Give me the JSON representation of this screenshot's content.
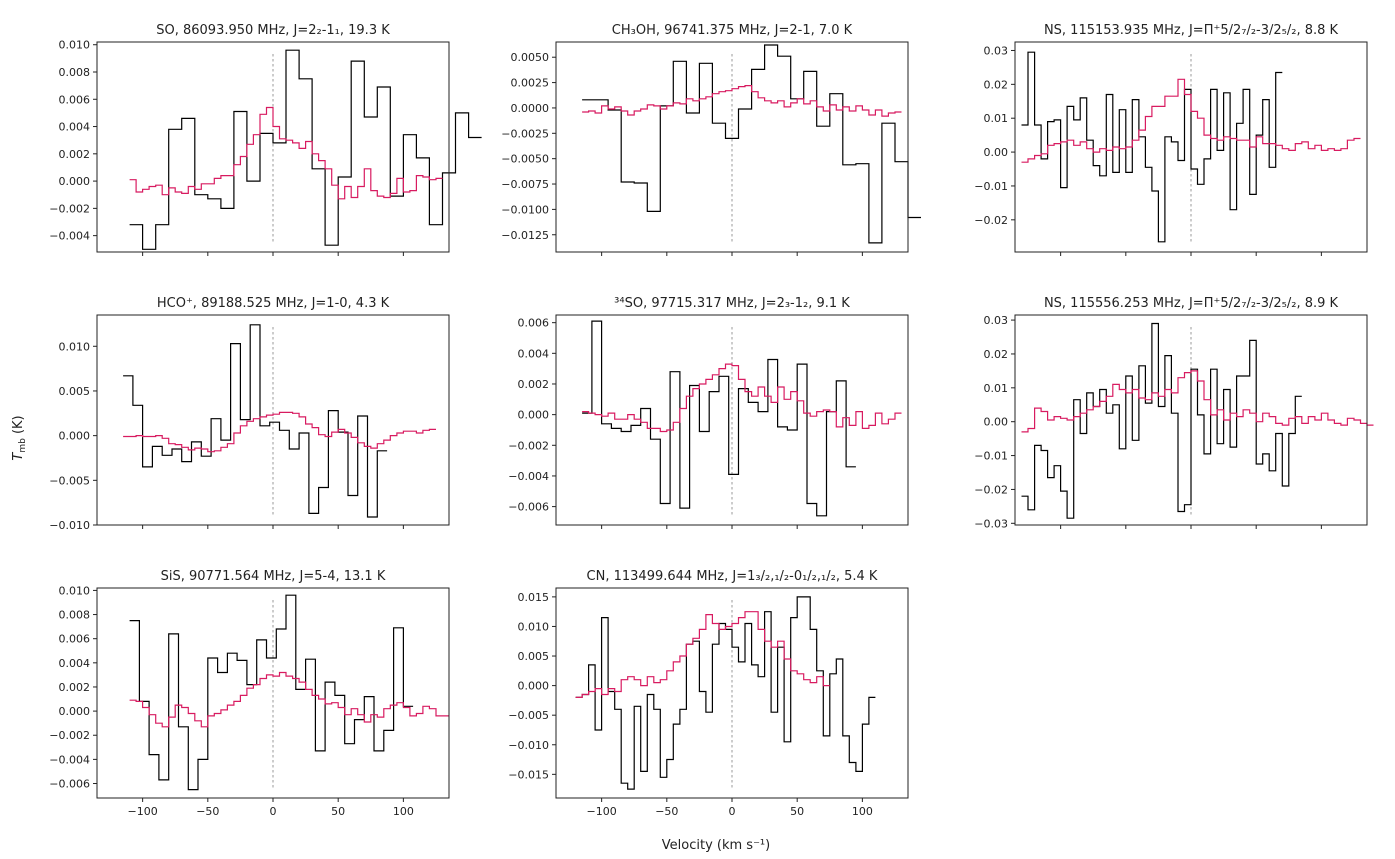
{
  "figure": {
    "xlabel": "Velocity (km s⁻¹)",
    "ylabel": "T_mb (K)",
    "colors": {
      "observed": "#000000",
      "model": "#d81b60",
      "zero_line": "#999999"
    }
  },
  "chart_data": [
    {
      "type": "line",
      "title": "SO, 86093.950 MHz, J=2₂-1₁, 19.3 K",
      "xlim": [
        -135,
        135
      ],
      "ylim": [
        -0.0052,
        0.0102
      ],
      "xticks": [
        -100,
        -50,
        0,
        50,
        100
      ],
      "xticklabels_visible": false,
      "yticks": [
        -0.004,
        -0.002,
        0.0,
        0.002,
        0.004,
        0.006,
        0.008,
        0.01
      ],
      "yticklabels": [
        "−0.004",
        "−0.002",
        "0.000",
        "0.002",
        "0.004",
        "0.006",
        "0.008",
        "0.010"
      ],
      "observed": {
        "x0": -110,
        "dx": 10,
        "values": [
          -0.0032,
          -0.005,
          -0.0032,
          0.0038,
          0.0046,
          -0.001,
          -0.0013,
          -0.002,
          0.0051,
          0.0,
          0.0035,
          0.0028,
          0.0096,
          0.0075,
          0.0009,
          -0.0047,
          0.0003,
          0.0088,
          0.0047,
          0.0069,
          -0.0011,
          0.0034,
          0.0017,
          -0.0032,
          0.0006,
          0.005,
          0.0032
        ]
      },
      "model": {
        "x0": -110,
        "dx": 5,
        "values": [
          0.0001,
          -0.0008,
          -0.0006,
          -0.0004,
          -0.0003,
          -0.001,
          -0.0005,
          -0.0008,
          -0.0009,
          -0.0004,
          -0.0006,
          -0.0002,
          -0.0002,
          0.0002,
          0.0004,
          0.0004,
          0.0012,
          0.0018,
          0.0027,
          0.0034,
          0.0049,
          0.0054,
          0.004,
          0.0031,
          0.003,
          0.0028,
          0.0024,
          0.0029,
          0.002,
          0.0015,
          0.0009,
          -0.0003,
          -0.0013,
          -0.0004,
          -0.0012,
          -0.0004,
          0.0009,
          -0.0007,
          -0.0011,
          -0.0012,
          -0.0009,
          0.0002,
          -0.0008,
          -0.0007,
          0.0004,
          0.0003,
          0.0001,
          0.0002
        ]
      }
    },
    {
      "type": "line",
      "title": "CH₃OH, 96741.375 MHz, J=2-1, 7.0 K",
      "xlim": [
        -135,
        135
      ],
      "ylim": [
        -0.0142,
        0.0065
      ],
      "xticks": [
        -100,
        -50,
        0,
        50,
        100
      ],
      "xticklabels_visible": false,
      "yticks": [
        -0.0125,
        -0.01,
        -0.0075,
        -0.005,
        -0.0025,
        0.0,
        0.0025,
        0.005
      ],
      "yticklabels": [
        "−0.0125",
        "−0.0100",
        "−0.0075",
        "−0.0050",
        "−0.0025",
        "0.0000",
        "0.0025",
        "0.0050"
      ],
      "observed": {
        "x0": -115,
        "dx": 10,
        "values": [
          0.0008,
          0.0008,
          -0.0002,
          -0.0073,
          -0.0074,
          -0.0102,
          0.0002,
          0.0046,
          -0.0005,
          0.0044,
          -0.0015,
          -0.003,
          -0.0001,
          0.0038,
          0.0062,
          0.0051,
          0.0009,
          0.0036,
          -0.0018,
          0.0014,
          -0.0056,
          -0.0055,
          -0.0133,
          -0.0015,
          -0.0053,
          -0.0108
        ]
      },
      "model": {
        "x0": -115,
        "dx": 5,
        "values": [
          -0.0004,
          -0.0003,
          -0.0005,
          0.0002,
          -0.0001,
          0.0001,
          -0.0003,
          -0.0007,
          -0.0003,
          -0.0001,
          0.0003,
          0.0002,
          -0.0001,
          0.0002,
          0.0005,
          0.0004,
          0.0009,
          0.0007,
          0.0009,
          0.0011,
          0.0014,
          0.0016,
          0.0017,
          0.0019,
          0.0021,
          0.0022,
          0.0016,
          0.001,
          0.0007,
          0.0005,
          0.0007,
          0.0001,
          0.0005,
          0.0009,
          0.0004,
          0.0007,
          0.0001,
          -0.0003,
          0.0003,
          -0.0002,
          0.0001,
          -0.0003,
          0.0002,
          -0.0002,
          -0.0007,
          -0.0002,
          -0.0008,
          -0.0005,
          -0.0004
        ]
      }
    },
    {
      "type": "line",
      "title": "NS, 115153.935 MHz, J=Π⁺5/2₇/₂-3/2₅/₂, 8.8 K",
      "xlim": [
        -135,
        135
      ],
      "ylim": [
        -0.0295,
        0.0325
      ],
      "xticks": [
        -100,
        -50,
        0,
        50,
        100
      ],
      "xticklabels_visible": false,
      "yticks": [
        -0.02,
        -0.01,
        0.0,
        0.01,
        0.02,
        0.03
      ],
      "yticklabels": [
        "−0.02",
        "−0.01",
        "0.00",
        "0.01",
        "0.02",
        "0.03"
      ],
      "observed": {
        "x0": -130,
        "dx": 5,
        "values": [
          0.008,
          0.0295,
          0.008,
          -0.002,
          0.009,
          0.0095,
          -0.0105,
          0.0135,
          0.0095,
          0.016,
          0.0035,
          -0.004,
          -0.007,
          0.017,
          -0.006,
          0.0125,
          -0.006,
          0.0155,
          0.0045,
          -0.0045,
          -0.0115,
          -0.0265,
          0.0045,
          0.003,
          -0.0025,
          0.0185,
          -0.005,
          -0.0095,
          -0.002,
          0.0185,
          0.0005,
          0.0175,
          -0.017,
          0.0085,
          0.0185,
          -0.0125,
          0.005,
          0.0155,
          -0.0045,
          0.0235
        ]
      },
      "model": {
        "x0": -130,
        "dx": 5,
        "values": [
          -0.003,
          -0.002,
          -0.001,
          -0.0005,
          0.002,
          0.0025,
          0.003,
          0.0035,
          0.002,
          0.003,
          0.001,
          0.0,
          0.001,
          0.0005,
          0.0015,
          0.001,
          0.0015,
          0.0035,
          0.0065,
          0.0105,
          0.0135,
          0.0135,
          0.0165,
          0.0165,
          0.0215,
          0.017,
          0.012,
          0.01,
          0.005,
          0.004,
          0.0035,
          0.0045,
          0.004,
          0.0035,
          0.0035,
          0.0015,
          0.0045,
          0.0025,
          0.0025,
          0.002,
          0.001,
          0.0005,
          0.0025,
          0.003,
          0.001,
          0.002,
          0.0005,
          0.001,
          0.0005,
          0.001,
          0.0035,
          0.004
        ]
      }
    },
    {
      "type": "line",
      "title": "HCO⁺, 89188.525 MHz, J=1-0, 4.3 K",
      "xlim": [
        -135,
        135
      ],
      "ylim": [
        -0.01,
        0.0135
      ],
      "xticks": [
        -100,
        -50,
        0,
        50,
        100
      ],
      "xticklabels_visible": false,
      "yticks": [
        -0.01,
        -0.005,
        0.0,
        0.005,
        0.01
      ],
      "yticklabels": [
        "−0.010",
        "−0.005",
        "0.000",
        "0.005",
        "0.010"
      ],
      "observed": {
        "x0": -115,
        "dx": 7.5,
        "values": [
          0.0067,
          0.0034,
          -0.0035,
          -0.0012,
          -0.0022,
          -0.0015,
          -0.0029,
          -0.0007,
          -0.0023,
          0.0019,
          -0.0005,
          0.0103,
          0.0018,
          0.0124,
          0.0011,
          0.0015,
          0.0006,
          -0.0015,
          0.0003,
          -0.0087,
          -0.0058,
          0.0028,
          0.0004,
          -0.0067,
          0.0022,
          -0.0091,
          -0.0017
        ]
      },
      "model": {
        "x0": -115,
        "dx": 5,
        "values": [
          -0.0001,
          -0.0001,
          0.0,
          -0.0001,
          -0.0001,
          0.0,
          -0.0003,
          -0.0009,
          -0.001,
          -0.0013,
          -0.0016,
          -0.0014,
          -0.0015,
          -0.0018,
          -0.0017,
          -0.0013,
          -0.0009,
          0.0003,
          0.0011,
          0.0016,
          0.0019,
          0.0021,
          0.0023,
          0.0024,
          0.0026,
          0.0026,
          0.0025,
          0.0021,
          0.0013,
          0.0009,
          0.0001,
          -0.0001,
          0.0004,
          0.0007,
          0.0003,
          -0.0002,
          -0.0008,
          -0.0012,
          -0.0014,
          -0.0009,
          -0.0005,
          0.0,
          0.0003,
          0.0005,
          0.0005,
          0.0003,
          0.0006,
          0.0007
        ]
      }
    },
    {
      "type": "line",
      "title": "³⁴SO, 97715.317 MHz, J=2₃-1₂, 9.1 K",
      "xlim": [
        -135,
        135
      ],
      "ylim": [
        -0.0072,
        0.0065
      ],
      "xticks": [
        -100,
        -50,
        0,
        50,
        100
      ],
      "xticklabels_visible": false,
      "yticks": [
        -0.006,
        -0.004,
        -0.002,
        0.0,
        0.002,
        0.004,
        0.006
      ],
      "yticklabels": [
        "−0.006",
        "−0.004",
        "−0.002",
        "0.000",
        "0.002",
        "0.004",
        "0.006"
      ],
      "observed": {
        "x0": -115,
        "dx": 7.5,
        "values": [
          0.0001,
          0.0061,
          -0.0006,
          -0.0009,
          -0.0011,
          -0.0007,
          0.0004,
          -0.0016,
          -0.0058,
          0.0028,
          -0.0061,
          0.0019,
          -0.0011,
          0.0015,
          0.0025,
          -0.0039,
          0.0017,
          0.0008,
          0.0002,
          0.0036,
          -0.0008,
          -0.001,
          0.0033,
          -0.0058,
          -0.0066,
          0.0002,
          0.0022,
          -0.0034
        ]
      },
      "model": {
        "x0": -115,
        "dx": 5,
        "values": [
          0.0002,
          0.0001,
          0.0,
          -0.0001,
          0.0001,
          -0.0003,
          -0.0003,
          0.0,
          -0.0003,
          -0.0005,
          -0.0009,
          -0.0009,
          -0.0011,
          -0.001,
          -0.0005,
          0.0004,
          0.0012,
          0.0017,
          0.002,
          0.0023,
          0.0026,
          0.003,
          0.0033,
          0.0032,
          0.0023,
          0.0015,
          0.0012,
          0.0018,
          0.0012,
          0.0008,
          0.0018,
          0.001,
          0.0015,
          0.0009,
          0.0001,
          -0.0001,
          0.0002,
          0.0003,
          0.0002,
          -0.0008,
          -0.0002,
          -0.0007,
          0.0002,
          -0.0009,
          -0.0007,
          0.0001,
          -0.0006,
          -0.0003,
          0.0001
        ]
      }
    },
    {
      "type": "line",
      "title": "NS, 115556.253 MHz, J=Π⁺5/2₇/₂-3/2₅/₂, 8.9 K",
      "xlim": [
        -135,
        135
      ],
      "ylim": [
        -0.0305,
        0.0315
      ],
      "xticks": [
        -100,
        -50,
        0,
        50,
        100
      ],
      "xticklabels_visible": false,
      "yticks": [
        -0.03,
        -0.02,
        -0.01,
        0.0,
        0.01,
        0.02,
        0.03
      ],
      "yticklabels": [
        "−0.03",
        "−0.02",
        "−0.01",
        "0.00",
        "0.01",
        "0.02",
        "0.03"
      ],
      "observed": {
        "x0": -130,
        "dx": 5,
        "values": [
          -0.022,
          -0.026,
          -0.007,
          -0.0085,
          -0.0165,
          -0.013,
          -0.0205,
          -0.0285,
          0.0065,
          -0.0035,
          0.0085,
          0.0045,
          0.0095,
          0.0025,
          0.005,
          -0.008,
          0.0135,
          -0.0055,
          0.0165,
          0.0055,
          0.029,
          0.0045,
          0.0195,
          0.0025,
          -0.0265,
          -0.0245,
          0.0155,
          0.002,
          -0.0095,
          0.0155,
          -0.0065,
          0.0095,
          -0.0075,
          0.0135,
          0.0135,
          0.024,
          -0.0125,
          -0.0095,
          -0.0145,
          -0.0035,
          -0.019,
          -0.0035,
          0.0075
        ]
      },
      "model": {
        "x0": -130,
        "dx": 5,
        "values": [
          -0.003,
          -0.002,
          0.004,
          0.003,
          0.0005,
          0.0015,
          0.001,
          0.0005,
          0.0015,
          0.0025,
          0.0035,
          0.0045,
          0.006,
          0.0075,
          0.011,
          0.0095,
          0.0085,
          0.0095,
          0.007,
          0.0065,
          0.0085,
          0.0075,
          0.0095,
          0.0085,
          0.013,
          0.0145,
          0.015,
          0.012,
          0.0065,
          0.002,
          0.0035,
          0.0005,
          0.0025,
          0.0015,
          0.0035,
          0.0025,
          0.0,
          0.0025,
          0.0015,
          -0.0005,
          -0.001,
          0.001,
          0.0015,
          -0.0005,
          0.0015,
          0.0005,
          0.0025,
          0.0005,
          -0.0005,
          -0.001,
          0.001,
          0.0005,
          -0.0005,
          -0.001
        ]
      }
    },
    {
      "type": "line",
      "title": "SiS, 90771.564 MHz, J=5-4, 13.1 K",
      "xlim": [
        -135,
        135
      ],
      "ylim": [
        -0.0072,
        0.0102
      ],
      "xticks": [
        -100,
        -50,
        0,
        50,
        100
      ],
      "xticklabels": [
        "−100",
        "−50",
        "0",
        "50",
        "100"
      ],
      "xticklabels_visible": true,
      "yticks": [
        -0.006,
        -0.004,
        -0.002,
        0.0,
        0.002,
        0.004,
        0.006,
        0.008,
        0.01
      ],
      "yticklabels": [
        "−0.006",
        "−0.004",
        "−0.002",
        "0.000",
        "0.002",
        "0.004",
        "0.006",
        "0.008",
        "0.010"
      ],
      "observed": {
        "x0": -110,
        "dx": 7.5,
        "values": [
          0.0075,
          0.0008,
          -0.0036,
          -0.0057,
          0.0064,
          -0.0013,
          -0.0065,
          -0.004,
          0.0044,
          0.0032,
          0.0048,
          0.0042,
          0.0022,
          0.0059,
          0.0044,
          0.0068,
          0.0096,
          0.0018,
          0.0043,
          -0.0033,
          0.0024,
          0.0013,
          -0.0027,
          -0.0007,
          0.0012,
          -0.0033,
          -0.0016,
          0.0069,
          0.0004
        ]
      },
      "model": {
        "x0": -110,
        "dx": 5,
        "values": [
          0.0009,
          0.0008,
          0.0003,
          -0.0003,
          -0.001,
          -0.0013,
          -0.0005,
          0.0005,
          0.0003,
          -0.0002,
          -0.0008,
          -0.0013,
          -0.0004,
          -0.0002,
          0.0001,
          0.0005,
          0.0008,
          0.0013,
          0.0019,
          0.0022,
          0.0027,
          0.003,
          0.0029,
          0.0032,
          0.0029,
          0.0027,
          0.0024,
          0.0018,
          0.0013,
          0.001,
          0.0006,
          0.0007,
          0.0003,
          -0.0003,
          0.0002,
          -0.0003,
          -0.0009,
          -0.0003,
          -0.0005,
          0.0002,
          0.0005,
          0.0007,
          0.0003,
          -0.0004,
          -0.0002,
          0.0004,
          0.0002,
          -0.0004,
          -0.0004
        ]
      }
    },
    {
      "type": "line",
      "title": "CN, 113499.644 MHz, J=1₃/₂,₁/₂-0₁/₂,₁/₂, 5.4 K",
      "xlim": [
        -135,
        135
      ],
      "ylim": [
        -0.019,
        0.0165
      ],
      "xticks": [
        -100,
        -50,
        0,
        50,
        100
      ],
      "xticklabels": [
        "−100",
        "−50",
        "0",
        "50",
        "100"
      ],
      "xticklabels_visible": true,
      "yticks": [
        -0.015,
        -0.01,
        -0.005,
        0.0,
        0.005,
        0.01,
        0.015
      ],
      "yticklabels": [
        "−0.015",
        "−0.010",
        "−0.005",
        "0.000",
        "0.005",
        "0.010",
        "0.015"
      ],
      "observed": {
        "x0": -120,
        "dx": 5,
        "values": [
          -0.002,
          -0.0015,
          0.0035,
          -0.0075,
          0.0115,
          -0.001,
          -0.004,
          -0.0165,
          -0.0175,
          -0.0035,
          -0.0145,
          -0.0015,
          -0.004,
          -0.0155,
          -0.0125,
          -0.0065,
          -0.004,
          0.007,
          0.0075,
          -0.001,
          -0.0045,
          0.007,
          0.0105,
          0.0095,
          0.0065,
          0.004,
          0.0105,
          0.0035,
          0.0015,
          0.0125,
          -0.0045,
          0.0065,
          -0.0095,
          0.0115,
          0.015,
          0.015,
          0.0095,
          0.0025,
          -0.0085,
          0.002,
          0.0045,
          -0.0085,
          -0.013,
          -0.0145,
          -0.0065,
          -0.002
        ]
      },
      "model": {
        "x0": -120,
        "dx": 5,
        "values": [
          -0.002,
          -0.0015,
          -0.001,
          -0.0005,
          -0.0015,
          -0.0005,
          -0.001,
          0.001,
          0.0015,
          0.001,
          0.0,
          0.0015,
          0.0005,
          0.001,
          0.0025,
          0.004,
          0.005,
          0.007,
          0.008,
          0.0095,
          0.012,
          0.0105,
          0.0095,
          0.01,
          0.0105,
          0.0115,
          0.0125,
          0.0125,
          0.0095,
          0.0075,
          0.0065,
          0.0075,
          0.0045,
          0.0025,
          0.002,
          0.001,
          0.0005,
          0.0015,
          0.0
        ]
      }
    }
  ]
}
